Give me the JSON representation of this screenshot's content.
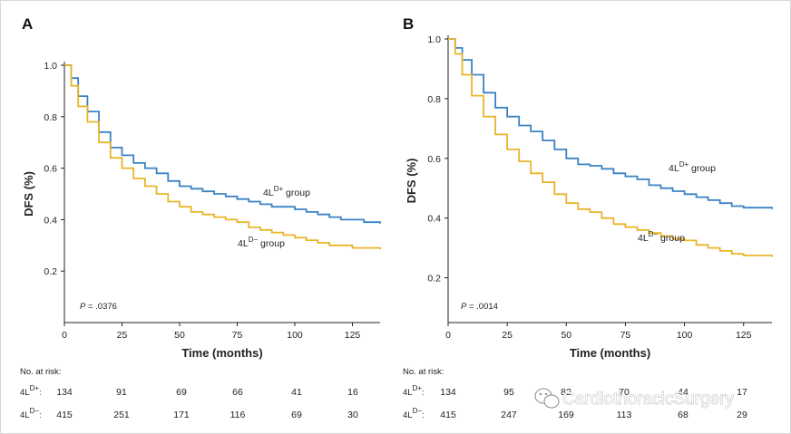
{
  "chart_data": [
    {
      "type": "line",
      "panel_label": "A",
      "xlabel": "Time (months)",
      "ylabel": "DFS (%)",
      "x_ticks": [
        0,
        25,
        50,
        75,
        100,
        125
      ],
      "y_ticks": [
        "0.2",
        "0.4",
        "0.6",
        "0.8",
        "1.0"
      ],
      "xlim": [
        0,
        137
      ],
      "ylim": [
        0.0,
        1.0
      ],
      "p_value": ".0376",
      "series": [
        {
          "name": "4L",
          "sup": "D+",
          "suffix": " group",
          "color": "#3b82c4",
          "x": [
            0,
            3,
            6,
            10,
            15,
            20,
            25,
            30,
            35,
            40,
            45,
            50,
            55,
            60,
            65,
            70,
            75,
            80,
            85,
            90,
            95,
            100,
            105,
            110,
            115,
            120,
            125,
            130,
            137
          ],
          "y": [
            1.0,
            0.95,
            0.88,
            0.82,
            0.74,
            0.68,
            0.65,
            0.62,
            0.6,
            0.58,
            0.55,
            0.53,
            0.52,
            0.51,
            0.5,
            0.49,
            0.48,
            0.47,
            0.46,
            0.45,
            0.45,
            0.44,
            0.43,
            0.42,
            0.41,
            0.4,
            0.4,
            0.39,
            0.385
          ]
        },
        {
          "name": "4L",
          "sup": "D−",
          "suffix": " group",
          "color": "#e8b52a",
          "x": [
            0,
            3,
            6,
            10,
            15,
            20,
            25,
            30,
            35,
            40,
            45,
            50,
            55,
            60,
            65,
            70,
            75,
            80,
            85,
            90,
            95,
            100,
            105,
            110,
            115,
            120,
            125,
            130,
            137
          ],
          "y": [
            1.0,
            0.92,
            0.84,
            0.78,
            0.7,
            0.64,
            0.6,
            0.56,
            0.53,
            0.5,
            0.47,
            0.45,
            0.43,
            0.42,
            0.41,
            0.4,
            0.39,
            0.37,
            0.36,
            0.35,
            0.34,
            0.33,
            0.32,
            0.31,
            0.3,
            0.3,
            0.29,
            0.29,
            0.285
          ]
        }
      ],
      "labels": {
        "upper": "4L",
        "upper_sup": "D+",
        "upper_suffix": " group",
        "lower": "4L",
        "lower_sup": "D−",
        "lower_suffix": " group"
      },
      "at_risk": {
        "title": "No. at risk:",
        "rows": [
          {
            "label": "4L",
            "sup": "D+",
            "colon": ":",
            "values": [
              "134",
              "91",
              "69",
              "66",
              "41",
              "16"
            ]
          },
          {
            "label": "4L",
            "sup": "D−",
            "colon": ":",
            "values": [
              "415",
              "251",
              "171",
              "116",
              "69",
              "30"
            ]
          }
        ]
      }
    },
    {
      "type": "line",
      "panel_label": "B",
      "xlabel": "Time (months)",
      "ylabel": "DFS (%)",
      "x_ticks": [
        0,
        25,
        50,
        75,
        100,
        125
      ],
      "y_ticks": [
        "0.2",
        "0.4",
        "0.6",
        "0.8",
        "1.0"
      ],
      "xlim": [
        0,
        137
      ],
      "ylim": [
        0.05,
        1.0
      ],
      "p_value": ".0014",
      "series": [
        {
          "name": "4L",
          "sup": "D+",
          "suffix": " group",
          "color": "#3b82c4",
          "x": [
            0,
            3,
            6,
            10,
            15,
            20,
            25,
            30,
            35,
            40,
            45,
            50,
            55,
            60,
            65,
            70,
            75,
            80,
            85,
            90,
            95,
            100,
            105,
            110,
            115,
            120,
            125,
            130,
            137
          ],
          "y": [
            1.0,
            0.97,
            0.93,
            0.88,
            0.82,
            0.77,
            0.74,
            0.71,
            0.69,
            0.66,
            0.63,
            0.6,
            0.58,
            0.575,
            0.565,
            0.55,
            0.54,
            0.53,
            0.51,
            0.5,
            0.49,
            0.48,
            0.47,
            0.46,
            0.45,
            0.44,
            0.435,
            0.435,
            0.43
          ]
        },
        {
          "name": "4L",
          "sup": "D−",
          "suffix": " group",
          "color": "#e8b52a",
          "x": [
            0,
            3,
            6,
            10,
            15,
            20,
            25,
            30,
            35,
            40,
            45,
            50,
            55,
            60,
            65,
            70,
            75,
            80,
            85,
            90,
            95,
            100,
            105,
            110,
            115,
            120,
            125,
            130,
            137
          ],
          "y": [
            1.0,
            0.95,
            0.88,
            0.81,
            0.74,
            0.68,
            0.63,
            0.59,
            0.55,
            0.52,
            0.48,
            0.45,
            0.43,
            0.42,
            0.4,
            0.38,
            0.37,
            0.36,
            0.35,
            0.34,
            0.33,
            0.325,
            0.31,
            0.3,
            0.29,
            0.28,
            0.275,
            0.275,
            0.27
          ]
        }
      ],
      "labels": {
        "upper": "4L",
        "upper_sup": "D+",
        "upper_suffix": " group",
        "lower": "4L",
        "lower_sup": "D−",
        "lower_suffix": " group"
      },
      "at_risk": {
        "title": "No. at risk:",
        "rows": [
          {
            "label": "4L",
            "sup": "D+",
            "colon": ":",
            "values": [
              "134",
              "95",
              "82",
              "70",
              "44",
              "17"
            ]
          },
          {
            "label": "4L",
            "sup": "D−",
            "colon": ":",
            "values": [
              "415",
              "247",
              "169",
              "113",
              "68",
              "29"
            ]
          }
        ]
      }
    }
  ],
  "watermark": {
    "text": "CardiothoracicSurgery",
    "icon": "wechat-icon"
  }
}
